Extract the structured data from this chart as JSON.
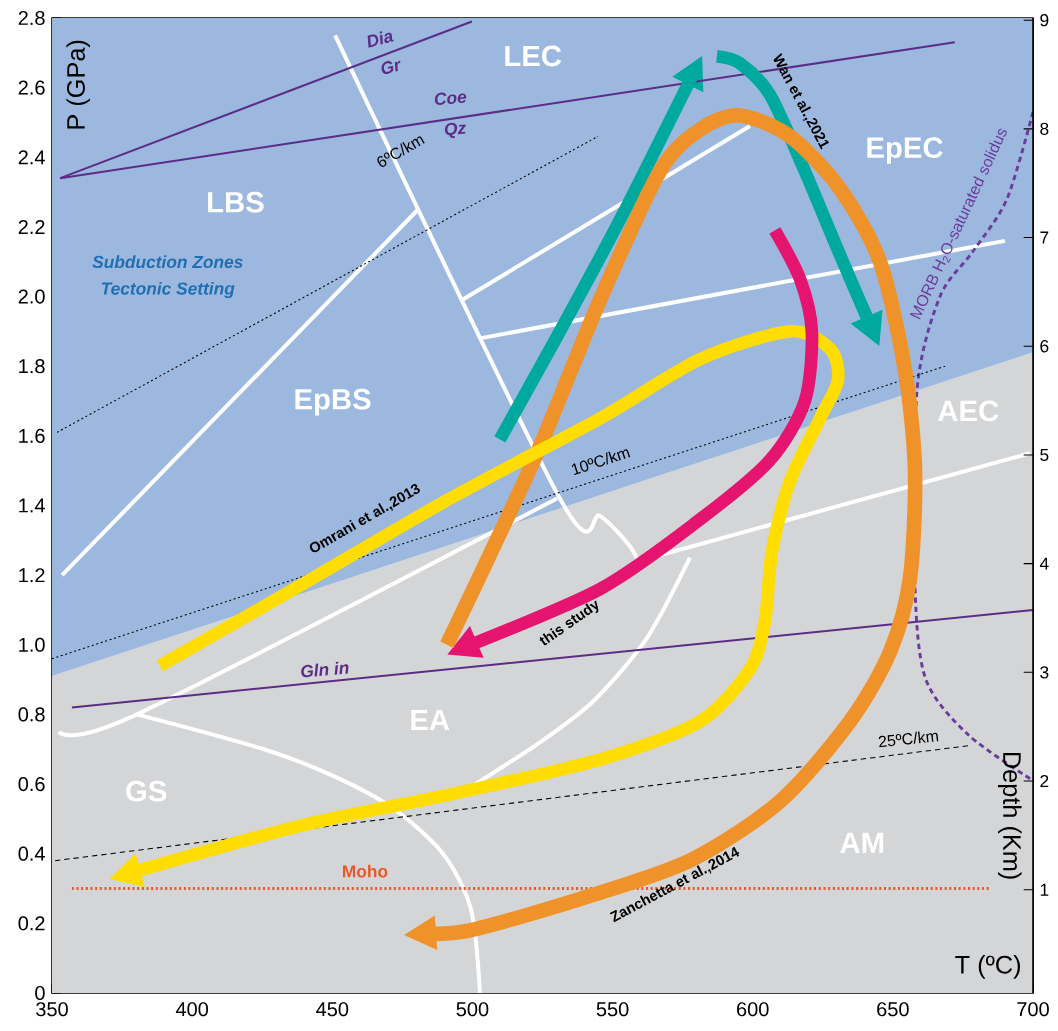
{
  "chart_data": {
    "type": "line",
    "xlabel": "T (ºC)",
    "ylabel": "P (GPa)",
    "y2label": "Depth (Km)",
    "xlim": [
      350,
      700
    ],
    "xticks": [
      350,
      400,
      450,
      500,
      550,
      600,
      650,
      700
    ],
    "ylim": [
      0,
      2.8
    ],
    "yticks": [
      0,
      0.2,
      0.4,
      0.6,
      0.8,
      {
        "value": 1.0,
        "label": "1.0"
      },
      1.2,
      1.4,
      1.6,
      1.8,
      {
        "value": 2.0,
        "label": "2.0"
      },
      2.2,
      2.4,
      2.6,
      2.8
    ],
    "y2lim": [
      0.05,
      9.02
    ],
    "y2ticks": [
      1,
      2,
      3,
      4,
      5,
      6,
      7,
      8,
      9
    ],
    "stacked": true,
    "series": [
      {
        "type": "area",
        "color": "#d4d5d7",
        "x": [
          350,
          700
        ],
        "values": [
          0.91,
          1.84
        ]
      },
      {
        "type": "area",
        "color": "#9cb8df",
        "x": [
          350,
          700
        ],
        "values": [
          1.89,
          0.96
        ]
      },
      {
        "color": "#ffffff",
        "x": [
          451.0,
          531.2,
          545.5,
          555.5,
          559.1
        ],
        "values": [
          2.75,
          1.42,
          1.37,
          1.29,
          1.24
        ]
      },
      {
        "color": "#ffffff",
        "x": [
          559.1,
          698.9
        ],
        "values": [
          1.24,
          1.55
        ]
      },
      {
        "color": "#ffffff",
        "x": [
          353.6,
          480.6
        ],
        "values": [
          1.2,
          2.25
        ]
      },
      {
        "color": "#ffffff",
        "x": [
          496.3,
          599.0
        ],
        "values": [
          1.99,
          2.49
        ]
      },
      {
        "color": "#ffffff",
        "x": [
          502.7,
          690.0
        ],
        "values": [
          1.88,
          2.16
        ]
      },
      {
        "color": "#ffffff",
        "x": [
          352.5,
          380.3,
          530.2
        ],
        "values": [
          0.75,
          0.8,
          1.42
        ]
      },
      {
        "color": "#ffffff",
        "x": [
          380.3,
          425.6,
          451.3,
          471.7,
          489.5,
          499.5,
          502.7
        ],
        "values": [
          0.8,
          0.7,
          0.62,
          0.53,
          0.4,
          0.24,
          0.0
        ]
      },
      {
        "color": "#ffffff",
        "x": [
          493.3,
          524.1,
          543.4,
          562.3,
          577.6
        ],
        "values": [
          0.56,
          0.72,
          0.84,
          1.02,
          1.25
        ]
      },
      {
        "color": "#5b2d86",
        "x": [
          352.9,
          499.8
        ],
        "values": [
          2.34,
          2.79
        ]
      },
      {
        "color": "#5b2d86",
        "x": [
          352.9,
          672.1
        ],
        "values": [
          2.34,
          2.73
        ]
      },
      {
        "color": "#5b2d86",
        "x": [
          357.1,
          700.0
        ],
        "values": [
          0.82,
          1.1
        ]
      },
      {
        "color": "#6a3d9a",
        "line_style": "dashed",
        "x": [
          700.0,
          690.7,
          678.6,
          666.8,
          658.6,
          657.9,
          661.8,
          677.1,
          700.0
        ],
        "values": [
          2.53,
          2.28,
          2.13,
          2.0,
          1.73,
          1.17,
          0.9,
          0.74,
          0.61
        ]
      },
      {
        "color": "#000000",
        "line_style": "dotted",
        "x": [
          351.8,
          544.8
        ],
        "values": [
          1.61,
          2.46
        ]
      },
      {
        "color": "#000000",
        "line_style": "dotted",
        "x": [
          350.0,
          668.6
        ],
        "values": [
          0.96,
          1.8
        ]
      },
      {
        "color": "#000000",
        "line_style": "dashed",
        "x": [
          351.1,
          676.8
        ],
        "values": [
          0.38,
          0.71
        ]
      },
      {
        "color": "#e8582a",
        "line_style": "dotted",
        "x": [
          357.1,
          684.6
        ],
        "values": [
          0.3,
          0.3
        ]
      },
      {
        "color": "#00a99d",
        "x": [
          509.8,
          531.2,
          552.6,
          579.4
        ],
        "values": [
          1.59,
          1.9,
          2.22,
          2.65
        ]
      },
      {
        "color": "#00a99d",
        "x": [
          587.2,
          595.4,
          606.1,
          618.6,
          631.1,
          642.9
        ],
        "values": [
          2.69,
          2.67,
          2.58,
          2.36,
          2.12,
          1.9
        ]
      },
      {
        "color": "#f0922a",
        "x": [
          490.9,
          506.3,
          524.1,
          545.5,
          566.9,
          581.2,
          595.4,
          613.3,
          631.1,
          645.4,
          654.3,
          657.9,
          656.1,
          649.0,
          634.7,
          609.7,
          577.6,
          538.4,
          499.1,
          481.3
        ],
        "values": [
          1.0,
          1.26,
          1.57,
          1.99,
          2.36,
          2.48,
          2.52,
          2.46,
          2.31,
          2.1,
          1.79,
          1.5,
          1.19,
          0.98,
          0.78,
          0.55,
          0.38,
          0.27,
          0.18,
          0.17
        ]
      },
      {
        "color": "#ffdd00",
        "x": [
          388.5,
          438.5,
          492.0,
          545.5,
          581.2,
          613.3,
          627.6,
          630.4,
          624.0,
          613.3,
          606.9,
          604.4,
          599.0,
          581.2,
          545.5,
          492.0,
          438.5,
          376.0
        ],
        "values": [
          0.94,
          1.17,
          1.42,
          1.65,
          1.82,
          1.9,
          1.85,
          1.76,
          1.65,
          1.47,
          1.27,
          1.07,
          0.93,
          0.78,
          0.67,
          0.57,
          0.48,
          0.34
        ]
      },
      {
        "color": "#e4146f",
        "x": [
          607.9,
          616.9,
          621.1,
          618.6,
          606.1,
          581.2,
          545.5,
          496.3
        ],
        "values": [
          2.19,
          2.05,
          1.9,
          1.7,
          1.53,
          1.36,
          1.16,
          0.99
        ]
      }
    ],
    "annotations": [
      "LEC",
      "LBS",
      "EpBS",
      "EpEC",
      "AEC",
      "EA",
      "GS",
      "AM",
      "Subduction Zones",
      "Tectonic Setting",
      "Dia",
      "Gr",
      "Coe",
      "Qz",
      "Gln in",
      "Moho",
      "6ºC/km",
      "10ºC/km",
      "25ºC/km",
      "Wan et al.,2021",
      "Omrani et al.,2013",
      "this study",
      {
        "text": "Zanchetta et al.,2014",
        "x": 572.3,
        "y": 0.31
      },
      "MORB H$_{2}$O-saturated solidus"
    ]
  }
}
